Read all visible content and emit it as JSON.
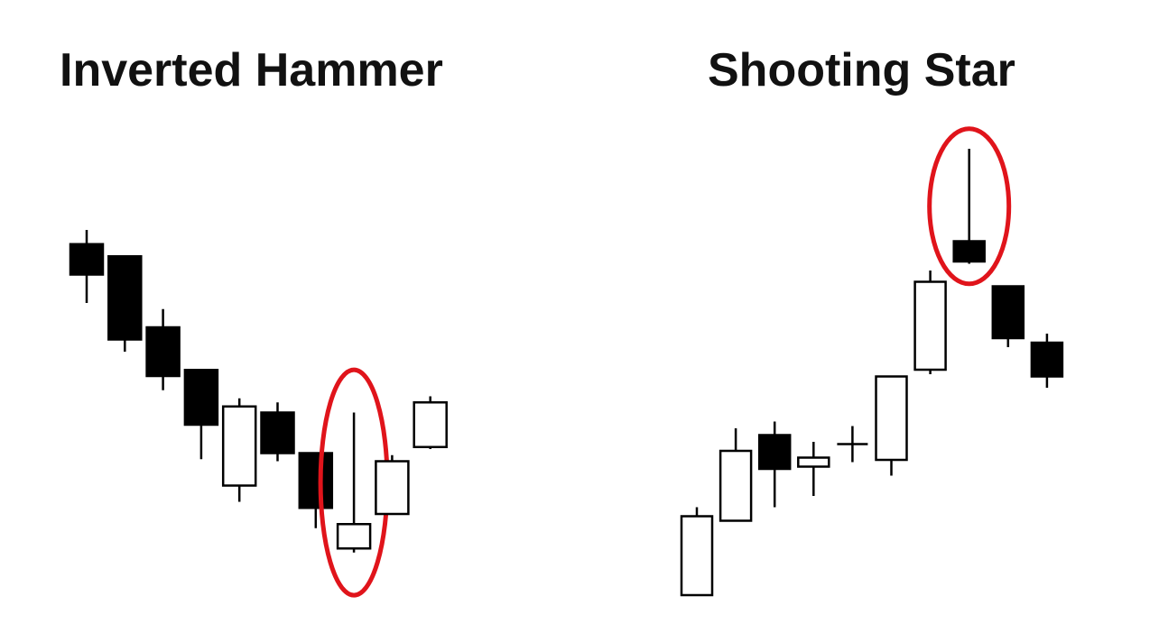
{
  "titles": {
    "left": "Inverted Hammer",
    "right": "Shooting Star"
  },
  "colors": {
    "bearish_fill": "#000000",
    "bullish_fill": "#ffffff",
    "outline": "#000000",
    "highlight": "#e0141b"
  },
  "chart_data": [
    {
      "type": "candlestick",
      "title": "Inverted Hammer",
      "trend": "down",
      "highlighted_index": 7,
      "candles": [
        {
          "bearish": true,
          "high": 90.0,
          "low": 72.0,
          "body_top": 86.5,
          "body_bottom": 79.0
        },
        {
          "bearish": true,
          "high": 83.5,
          "low": 60.0,
          "body_top": 83.5,
          "body_bottom": 63.0
        },
        {
          "bearish": true,
          "high": 70.5,
          "low": 50.5,
          "body_top": 66.0,
          "body_bottom": 54.0
        },
        {
          "bearish": true,
          "high": 55.5,
          "low": 33.5,
          "body_top": 55.5,
          "body_bottom": 42.0
        },
        {
          "bearish": false,
          "high": 48.5,
          "low": 23.0,
          "body_top": 46.5,
          "body_bottom": 27.0
        },
        {
          "bearish": true,
          "high": 47.5,
          "low": 33.0,
          "body_top": 45.0,
          "body_bottom": 35.0
        },
        {
          "bearish": true,
          "high": 35.0,
          "low": 16.5,
          "body_top": 35.0,
          "body_bottom": 21.5
        },
        {
          "bearish": false,
          "high": 45.0,
          "low": 10.5,
          "body_top": 17.5,
          "body_bottom": 11.5
        },
        {
          "bearish": false,
          "high": 34.5,
          "low": 20.0,
          "body_top": 33.0,
          "body_bottom": 20.0
        },
        {
          "bearish": false,
          "high": 49.0,
          "low": 36.0,
          "body_top": 47.5,
          "body_bottom": 36.5
        }
      ]
    },
    {
      "type": "candlestick",
      "title": "Shooting Star",
      "trend": "up",
      "highlighted_index": 7,
      "candles": [
        {
          "bearish": false,
          "high": 19.5,
          "low": 0.0,
          "body_top": 17.5,
          "body_bottom": 0.0
        },
        {
          "bearish": false,
          "high": 37.0,
          "low": 16.5,
          "body_top": 32.0,
          "body_bottom": 16.5
        },
        {
          "bearish": true,
          "high": 38.5,
          "low": 19.5,
          "body_top": 35.5,
          "body_bottom": 28.0
        },
        {
          "bearish": false,
          "high": 34.0,
          "low": 22.0,
          "body_top": 30.5,
          "body_bottom": 28.5
        },
        {
          "bearish": false,
          "high": 37.5,
          "low": 29.5,
          "body_top": 33.5,
          "body_bottom": 33.5
        },
        {
          "bearish": false,
          "high": 48.5,
          "low": 26.5,
          "body_top": 48.5,
          "body_bottom": 30.0
        },
        {
          "bearish": false,
          "high": 72.0,
          "low": 49.0,
          "body_top": 69.5,
          "body_bottom": 50.0
        },
        {
          "bearish": true,
          "high": 99.0,
          "low": 73.5,
          "body_top": 78.5,
          "body_bottom": 74.0
        },
        {
          "bearish": true,
          "high": 68.5,
          "low": 55.0,
          "body_top": 68.5,
          "body_bottom": 57.0
        },
        {
          "bearish": true,
          "high": 58.0,
          "low": 46.0,
          "body_top": 56.0,
          "body_bottom": 48.5
        }
      ]
    }
  ]
}
